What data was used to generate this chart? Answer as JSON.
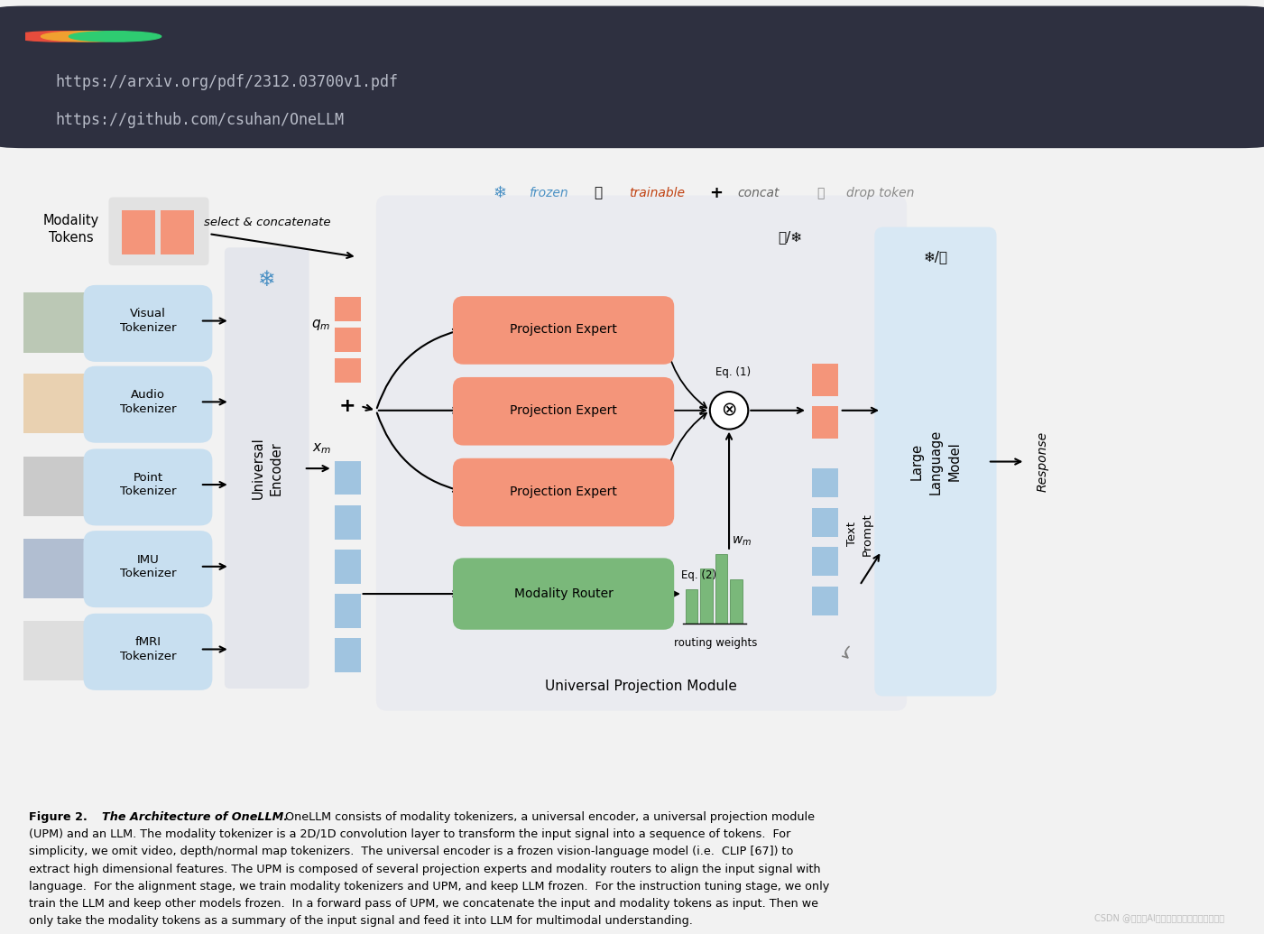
{
  "terminal_bg": "#2e3040",
  "terminal_text_color": "#b8bcc8",
  "terminal_url1": "https://arxiv.org/pdf/2312.03700v1.pdf",
  "terminal_url2": "https://github.com/csuhan/OneLLM",
  "terminal_dot_colors": [
    "#e74c3c",
    "#f0a030",
    "#2ecc71"
  ],
  "salmon_color": "#F4957A",
  "blue_color": "#A0C4E0",
  "light_blue_bg": "#D8E8F4",
  "light_gray_bg": "#E4E6EC",
  "upm_bg": "#EAEBF0",
  "green_color": "#7AB87A",
  "tok_bg": "#C8DFF0",
  "watermark": "CSDN @大数据AI人工智能培训专家培训讲师叶",
  "frozen_color": "#4A90C4",
  "trainable_color": "#C04010"
}
